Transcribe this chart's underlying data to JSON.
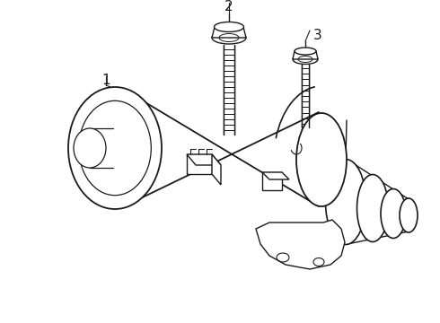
{
  "background_color": "#ffffff",
  "line_color": "#1a1a1a",
  "line_width": 1.0,
  "label_fontsize": 10,
  "labels": [
    "1",
    "2",
    "3"
  ],
  "figsize": [
    4.9,
    3.6
  ],
  "dpi": 100
}
